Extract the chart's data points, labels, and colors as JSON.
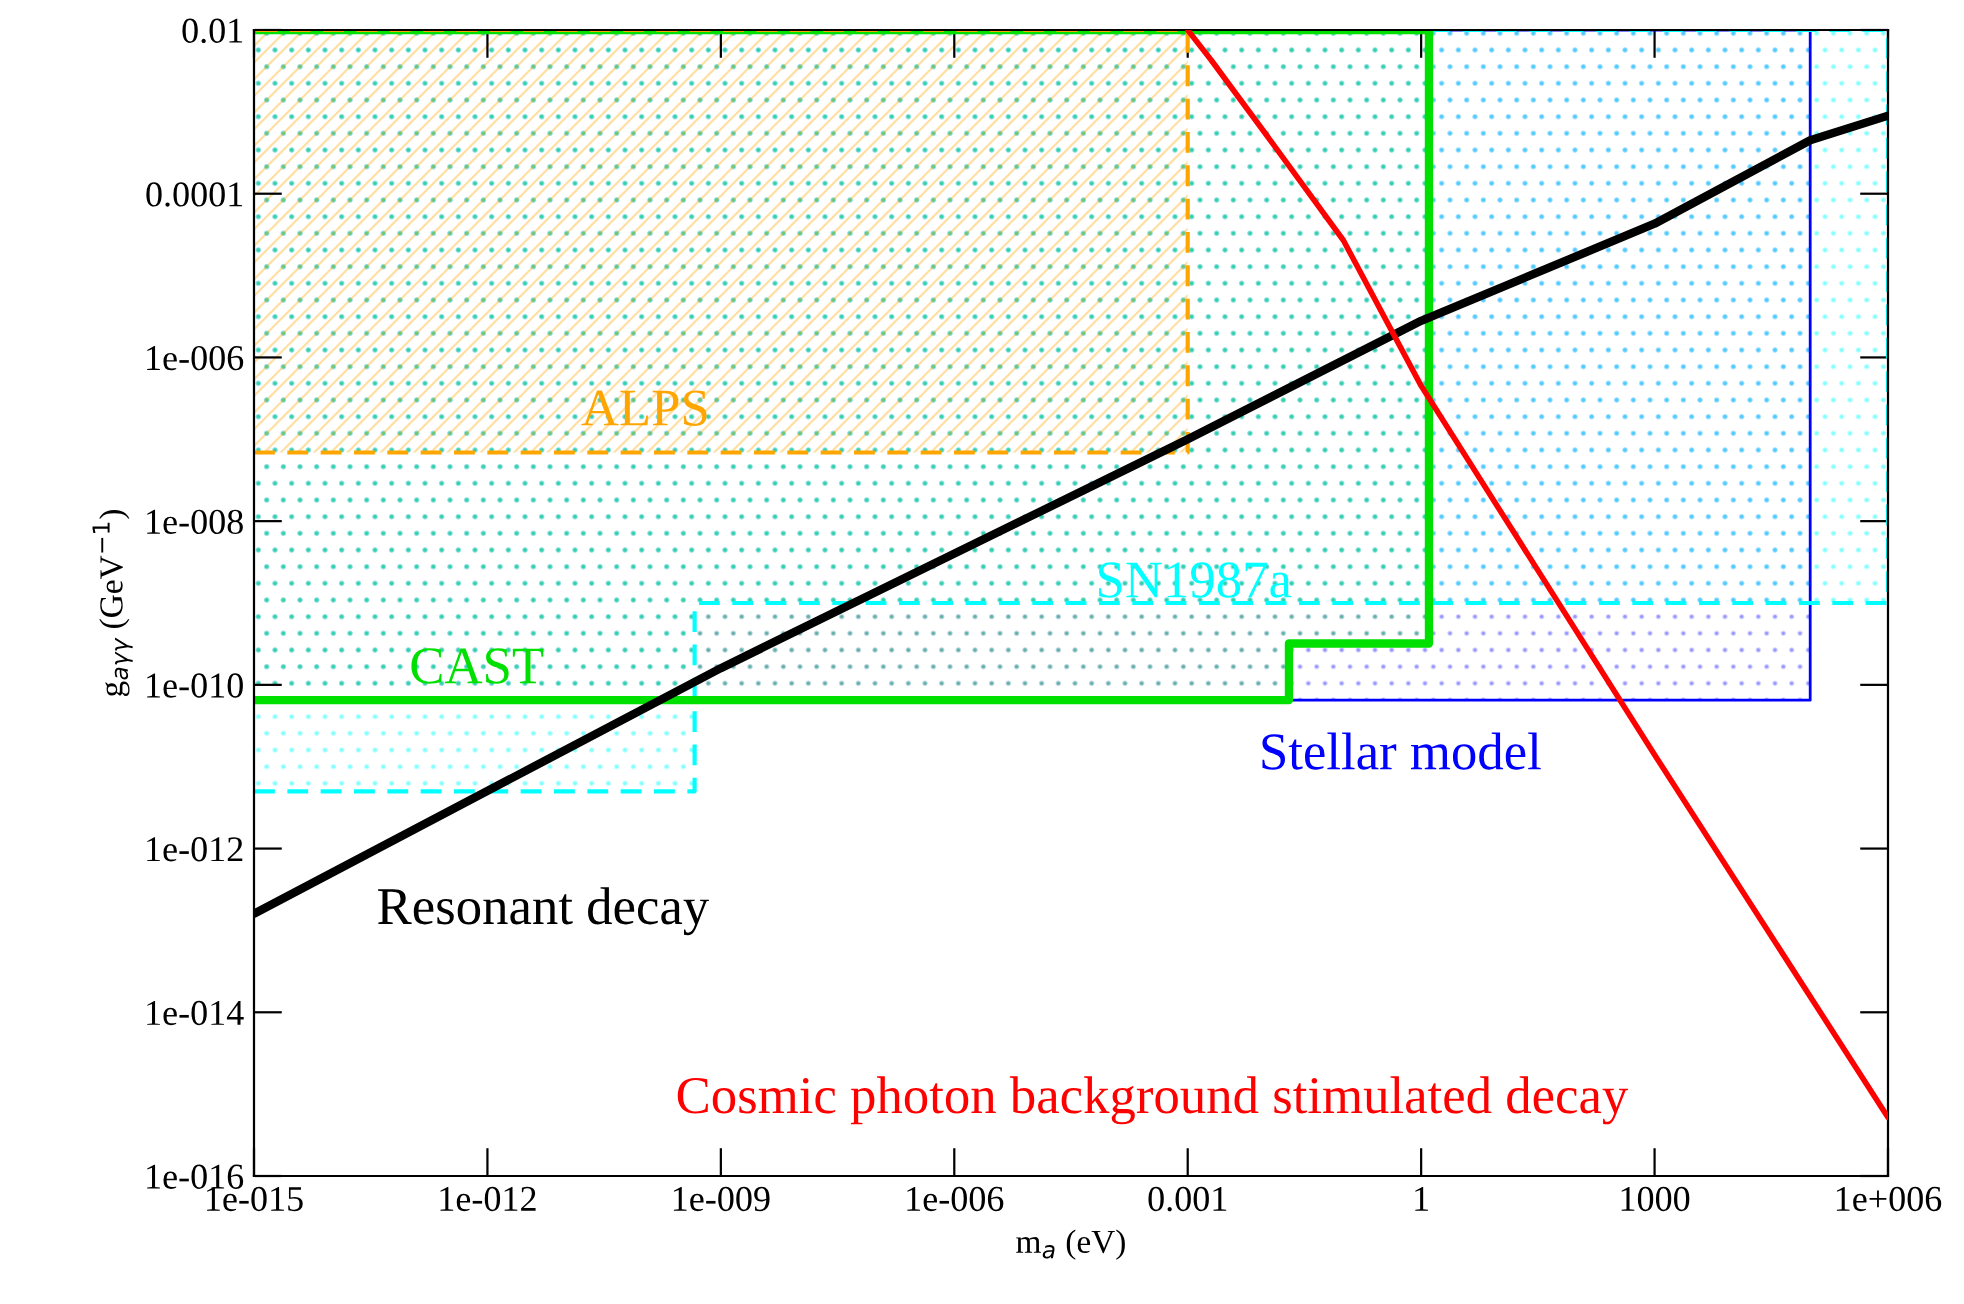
{
  "chart_data": {
    "type": "line",
    "xlabel": "m$_{a}$ (eV)",
    "ylabel": "g$_{aγγ}$ (GeV$^{−1}$)",
    "log": "xy",
    "grid": false,
    "legend": false,
    "xlim": [
      1e-15,
      1000000.0
    ],
    "ylim": [
      1e-16,
      0.01
    ],
    "xticks": [
      {
        "value": 1e-15,
        "label": "1e-015"
      },
      {
        "value": 1e-12,
        "label": "1e-012"
      },
      {
        "value": 1e-09,
        "label": "1e-009"
      },
      {
        "value": 1e-06,
        "label": "1e-006"
      },
      0.001,
      1,
      1000,
      {
        "value": 1000000.0,
        "label": "1e+006"
      }
    ],
    "yticks": [
      {
        "value": 1e-16,
        "label": "1e-016"
      },
      {
        "value": 1e-14,
        "label": "1e-014"
      },
      {
        "value": 1e-12,
        "label": "1e-012"
      },
      {
        "value": 1e-10,
        "label": "1e-010"
      },
      {
        "value": 1e-08,
        "label": "1e-008"
      },
      {
        "value": 1e-06,
        "label": "1e-006"
      },
      0.0001,
      0.01
    ],
    "series": [
      {
        "name": "Stellar model",
        "type": "area",
        "color": "#0000ff",
        "line_style": "solid",
        "x": [
          1e-15,
          100000.0,
          100000.0,
          1e-15
        ],
        "values": [
          6.5e-11,
          6.5e-11,
          0.01,
          0.01
        ]
      },
      {
        "name": "SN1987a",
        "type": "area",
        "color": "#00ffff",
        "line_style": "dashed",
        "x": [
          1e-15,
          4.6e-10,
          4.6e-10,
          1000000.0,
          1000000.0,
          1e-15
        ],
        "values": [
          5e-12,
          5e-12,
          1e-09,
          1e-09,
          0.01,
          0.01
        ]
      },
      {
        "name": "CAST",
        "type": "area",
        "color": "#00e000",
        "line_style": "solid",
        "x": [
          1e-15,
          0.02,
          0.02,
          1.26,
          1.26,
          1e-15
        ],
        "values": [
          6.5e-11,
          6.5e-11,
          3.2e-10,
          3.2e-10,
          0.01,
          0.01
        ]
      },
      {
        "name": "ALPS",
        "type": "area",
        "color": "#ffa500",
        "line_style": "dashed",
        "x": [
          1e-15,
          0.001,
          0.001,
          1e-15
        ],
        "values": [
          6.9e-08,
          6.9e-08,
          0.01,
          0.01
        ]
      },
      {
        "name": "Resonant decay",
        "color": "#000000",
        "line_style": "solid",
        "x": [
          1e-15,
          1e-09,
          0.001,
          1,
          1000,
          100000.0,
          1000000.0
        ],
        "values": [
          1.6e-13,
          1.6e-10,
          1e-07,
          2.8e-06,
          4.3e-05,
          0.00045,
          0.0009
        ]
      },
      {
        "name": "Cosmic photon background stimulated decay",
        "color": "#ff0000",
        "line_style": "solid",
        "x": [
          0.001,
          0.002,
          0.01,
          0.1,
          1,
          1000,
          1000000.0
        ],
        "values": [
          0.01,
          0.0043,
          0.00054,
          2.7e-05,
          4.5e-07,
          1.4e-11,
          5.2e-16
        ]
      }
    ]
  }
}
